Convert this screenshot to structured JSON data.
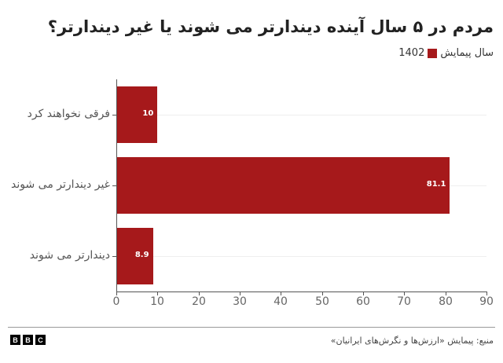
{
  "header": {
    "title": "مردم در ۵ سال آینده دیندارتر می شوند یا غیر دیندارتر؟",
    "legend_label": "سال پیمایش",
    "legend_value": "1402"
  },
  "colors": {
    "bar": "#a6191b"
  },
  "chart_data": {
    "type": "bar",
    "orientation": "horizontal",
    "title": "مردم در ۵ سال آینده دیندارتر می شوند یا غیر دیندارتر؟",
    "categories": [
      "فرقی نخواهند کرد",
      "غیر دیندارتر می شوند",
      "دیندارتر می شوند"
    ],
    "series": [
      {
        "name": "1402",
        "values": [
          10,
          81.1,
          8.9
        ],
        "color": "#a6191b"
      }
    ],
    "value_labels": [
      "10",
      "81.1",
      "8.9"
    ],
    "legend": {
      "title": "سال پیمایش",
      "entries": [
        "1402"
      ],
      "position": "top-right"
    },
    "xlabel": "",
    "ylabel": "",
    "xlim": [
      0,
      90
    ],
    "xticks": [
      "0",
      "10",
      "20",
      "30",
      "40",
      "50",
      "60",
      "70",
      "80",
      "90"
    ],
    "grid": "horizontal lines at category centers"
  },
  "footer": {
    "source": "منبع: پیمایش «ارزش‌ها و نگرش‌های ایرانیان»",
    "logo_letters": [
      "B",
      "B",
      "C"
    ]
  }
}
